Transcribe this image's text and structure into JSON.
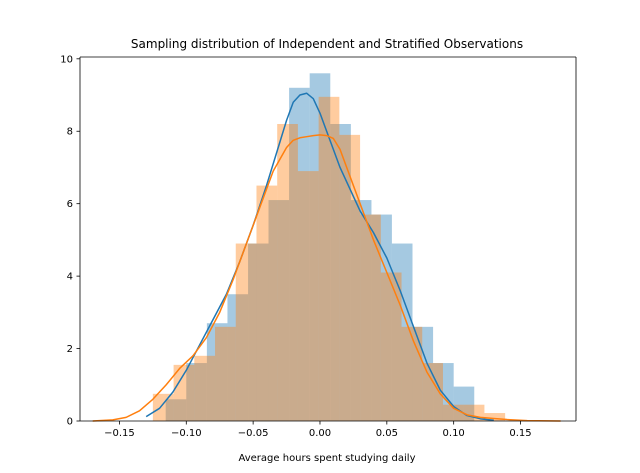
{
  "chart_data": {
    "type": "bar",
    "title": "Sampling distribution of Independent and Stratified Observations",
    "xlabel": "Average hours spent studying daily",
    "ylabel": "",
    "xlim": [
      -0.1795,
      0.1915
    ],
    "ylim": [
      0,
      10.05
    ],
    "xticks": [
      -0.15,
      -0.1,
      -0.05,
      0.0,
      0.05,
      0.1,
      0.15
    ],
    "xtick_labels": [
      "−0.15",
      "−0.10",
      "−0.05",
      "0.00",
      "0.05",
      "0.10",
      "0.15"
    ],
    "yticks": [
      0,
      2,
      4,
      6,
      8,
      10
    ],
    "ytick_labels": [
      "0",
      "2",
      "4",
      "6",
      "8",
      "10"
    ],
    "grid": false,
    "series": [
      {
        "kind": "histogram",
        "color": "#1f77b4",
        "opacity": 0.4,
        "bins": [
          {
            "x0": -0.1154,
            "x1": -0.1,
            "y": 0.6
          },
          {
            "x0": -0.1,
            "x1": -0.0846,
            "y": 1.6
          },
          {
            "x0": -0.0846,
            "x1": -0.0692,
            "y": 2.7
          },
          {
            "x0": -0.0692,
            "x1": -0.0538,
            "y": 3.5
          },
          {
            "x0": -0.0538,
            "x1": -0.0385,
            "y": 4.9
          },
          {
            "x0": -0.0385,
            "x1": -0.0231,
            "y": 6.1
          },
          {
            "x0": -0.0231,
            "x1": -0.0077,
            "y": 9.2
          },
          {
            "x0": -0.0077,
            "x1": 0.0077,
            "y": 9.6
          },
          {
            "x0": 0.0077,
            "x1": 0.0231,
            "y": 8.2
          },
          {
            "x0": 0.0231,
            "x1": 0.0385,
            "y": 6.1
          },
          {
            "x0": 0.0385,
            "x1": 0.0538,
            "y": 5.7
          },
          {
            "x0": 0.0538,
            "x1": 0.0692,
            "y": 4.9
          },
          {
            "x0": 0.0692,
            "x1": 0.0846,
            "y": 2.6
          },
          {
            "x0": 0.0846,
            "x1": 0.1,
            "y": 1.6
          },
          {
            "x0": 0.1,
            "x1": 0.1154,
            "y": 0.95
          }
        ],
        "kde": {
          "x": [
            -0.13,
            -0.12,
            -0.11,
            -0.1,
            -0.09,
            -0.08,
            -0.07,
            -0.06,
            -0.05,
            -0.04,
            -0.03,
            -0.025,
            -0.02,
            -0.015,
            -0.01,
            -0.005,
            0.0,
            0.005,
            0.01,
            0.015,
            0.02,
            0.03,
            0.04,
            0.05,
            0.06,
            0.07,
            0.08,
            0.09,
            0.1,
            0.11,
            0.12,
            0.13
          ],
          "y": [
            0.12,
            0.35,
            0.8,
            1.4,
            2.1,
            2.8,
            3.5,
            4.4,
            5.4,
            6.5,
            7.7,
            8.3,
            8.8,
            9.0,
            9.05,
            8.9,
            8.5,
            8.0,
            7.5,
            7.0,
            6.6,
            5.8,
            5.2,
            4.5,
            3.6,
            2.6,
            1.6,
            0.85,
            0.4,
            0.15,
            0.06,
            0.02
          ]
        }
      },
      {
        "kind": "histogram",
        "color": "#ff7f0e",
        "opacity": 0.4,
        "bins": [
          {
            "x0": -0.125,
            "x1": -0.1095,
            "y": 0.75
          },
          {
            "x0": -0.1095,
            "x1": -0.094,
            "y": 1.55
          },
          {
            "x0": -0.094,
            "x1": -0.0785,
            "y": 1.8
          },
          {
            "x0": -0.0785,
            "x1": -0.063,
            "y": 2.6
          },
          {
            "x0": -0.063,
            "x1": -0.0475,
            "y": 4.9
          },
          {
            "x0": -0.0475,
            "x1": -0.032,
            "y": 6.5
          },
          {
            "x0": -0.032,
            "x1": -0.0165,
            "y": 8.2
          },
          {
            "x0": -0.0165,
            "x1": -0.001,
            "y": 6.9
          },
          {
            "x0": -0.001,
            "x1": 0.0145,
            "y": 8.95
          },
          {
            "x0": 0.0145,
            "x1": 0.03,
            "y": 7.9
          },
          {
            "x0": 0.03,
            "x1": 0.0455,
            "y": 5.7
          },
          {
            "x0": 0.0455,
            "x1": 0.061,
            "y": 4.1
          },
          {
            "x0": 0.061,
            "x1": 0.0765,
            "y": 2.6
          },
          {
            "x0": 0.0765,
            "x1": 0.092,
            "y": 1.6
          },
          {
            "x0": 0.092,
            "x1": 0.1075,
            "y": 0.45
          },
          {
            "x0": 0.1075,
            "x1": 0.123,
            "y": 0.45
          },
          {
            "x0": 0.123,
            "x1": 0.1385,
            "y": 0.22
          }
        ],
        "kde": {
          "x": [
            -0.17,
            -0.155,
            -0.145,
            -0.135,
            -0.125,
            -0.115,
            -0.105,
            -0.095,
            -0.085,
            -0.075,
            -0.065,
            -0.055,
            -0.045,
            -0.035,
            -0.025,
            -0.02,
            -0.015,
            -0.01,
            -0.005,
            0.0,
            0.005,
            0.01,
            0.015,
            0.02,
            0.03,
            0.04,
            0.05,
            0.06,
            0.07,
            0.08,
            0.09,
            0.1,
            0.11,
            0.12,
            0.13,
            0.14,
            0.155,
            0.18
          ],
          "y": [
            0.0,
            0.03,
            0.1,
            0.28,
            0.6,
            1.0,
            1.45,
            1.8,
            2.3,
            3.0,
            3.9,
            4.9,
            5.9,
            6.9,
            7.55,
            7.75,
            7.82,
            7.85,
            7.88,
            7.9,
            7.88,
            7.8,
            7.5,
            7.0,
            6.0,
            5.0,
            4.1,
            3.2,
            2.2,
            1.35,
            0.75,
            0.35,
            0.17,
            0.1,
            0.07,
            0.04,
            0.01,
            0.0
          ]
        }
      }
    ]
  }
}
